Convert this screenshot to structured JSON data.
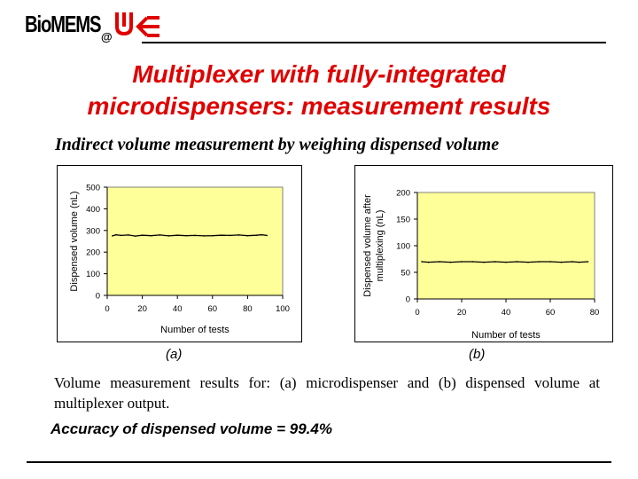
{
  "logo": {
    "text": "BioMEMS",
    "at": "@"
  },
  "title_line1": "Multiplexer with fully-integrated",
  "title_line2": "microdispensers: measurement results",
  "subtitle": "Indirect volume measurement by weighing dispensed volume",
  "colors": {
    "title": "#e00000",
    "plot_bg": "#ffff99",
    "line": "#000000"
  },
  "panel_labels": [
    "(a)",
    "(b)"
  ],
  "caption": "Volume measurement results for: (a) microdispenser and (b) dispensed volume at multiplexer output.",
  "accuracy": "Accuracy of dispensed volume = 99.4%",
  "chart_data": [
    {
      "type": "line",
      "xlabel": "Number of tests",
      "ylabel": "Dispensed volume (nL)",
      "xlim": [
        0,
        100
      ],
      "ylim": [
        0,
        500
      ],
      "xticks": [
        0,
        20,
        40,
        60,
        80,
        100
      ],
      "yticks": [
        0,
        100,
        200,
        300,
        400,
        500
      ],
      "grid": false,
      "series": [
        {
          "x": [
            3,
            5,
            8,
            12,
            16,
            20,
            25,
            30,
            35,
            40,
            45,
            50,
            55,
            60,
            65,
            70,
            75,
            80,
            85,
            88,
            91
          ],
          "values": [
            275,
            280,
            277,
            279,
            274,
            278,
            276,
            279,
            275,
            278,
            276,
            277,
            275,
            276,
            278,
            277,
            279,
            276,
            278,
            280,
            277
          ]
        }
      ]
    },
    {
      "type": "line",
      "xlabel": "Number of tests",
      "ylabel_line1": "Dispensed volume after",
      "ylabel_line2": "multiplexing (nL)",
      "xlim": [
        0,
        80
      ],
      "ylim": [
        0,
        200
      ],
      "xticks": [
        0,
        20,
        40,
        60,
        80
      ],
      "yticks": [
        0,
        50,
        100,
        150,
        200
      ],
      "grid": false,
      "series": [
        {
          "x": [
            2,
            5,
            10,
            15,
            20,
            25,
            30,
            35,
            40,
            45,
            50,
            55,
            60,
            65,
            70,
            73,
            77
          ],
          "values": [
            70,
            69,
            70,
            69,
            70,
            70,
            69,
            70,
            69,
            70,
            69,
            70,
            70,
            69,
            70,
            69,
            70
          ]
        }
      ]
    }
  ]
}
